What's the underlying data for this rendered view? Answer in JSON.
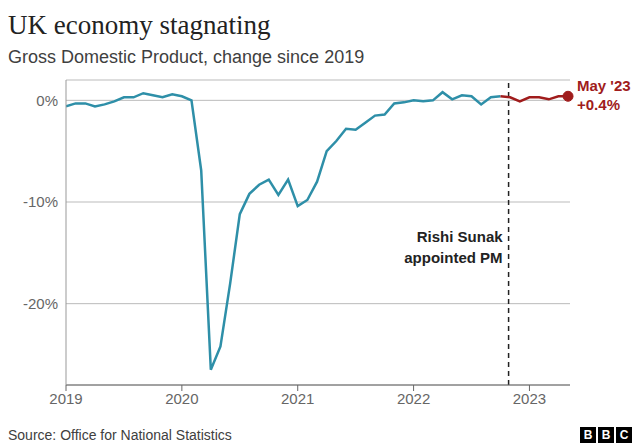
{
  "chart_data": {
    "type": "line",
    "title": "UK economy stagnating",
    "subtitle": "Gross Domestic Product, change since 2019",
    "source": "Source: Office for National Statistics",
    "logo": "BBC",
    "x": [
      2019,
      2019.083,
      2019.167,
      2019.25,
      2019.333,
      2019.417,
      2019.5,
      2019.583,
      2019.667,
      2019.75,
      2019.833,
      2019.917,
      2020,
      2020.083,
      2020.167,
      2020.25,
      2020.333,
      2020.417,
      2020.5,
      2020.583,
      2020.667,
      2020.75,
      2020.833,
      2020.917,
      2021,
      2021.083,
      2021.167,
      2021.25,
      2021.333,
      2021.417,
      2021.5,
      2021.583,
      2021.667,
      2021.75,
      2021.833,
      2021.917,
      2022,
      2022.083,
      2022.167,
      2022.25,
      2022.333,
      2022.417,
      2022.5,
      2022.583,
      2022.667,
      2022.75,
      2022.833,
      2022.917,
      2023,
      2023.083,
      2023.167,
      2023.25,
      2023.333
    ],
    "series": [
      {
        "color": "#2e8fa8",
        "values": [
          -0.6,
          -0.3,
          -0.3,
          -0.6,
          -0.4,
          -0.1,
          0.3,
          0.3,
          0.7,
          0.5,
          0.3,
          0.6,
          0.4,
          0.0,
          -6.9,
          -26.5,
          -24.2,
          -18.0,
          -11.2,
          -9.2,
          -8.3,
          -7.8,
          -9.3,
          -7.8,
          -10.4,
          -9.8,
          -8.0,
          -5.0,
          -4.0,
          -2.8,
          -2.9,
          -2.2,
          -1.5,
          -1.4,
          -0.3,
          -0.2,
          0.0,
          -0.1,
          0.0,
          0.8,
          0.1,
          0.5,
          0.4,
          -0.4,
          0.3,
          0.4,
          null,
          null,
          null,
          null,
          null,
          null,
          null
        ]
      },
      {
        "color": "#a01c1c",
        "values": [
          null,
          null,
          null,
          null,
          null,
          null,
          null,
          null,
          null,
          null,
          null,
          null,
          null,
          null,
          null,
          null,
          null,
          null,
          null,
          null,
          null,
          null,
          null,
          null,
          null,
          null,
          null,
          null,
          null,
          null,
          null,
          null,
          null,
          null,
          null,
          null,
          null,
          null,
          null,
          null,
          null,
          null,
          null,
          null,
          null,
          0.4,
          0.3,
          -0.1,
          0.3,
          0.3,
          0.1,
          0.4,
          0.4
        ]
      }
    ],
    "xlim": [
      2019,
      2023.35
    ],
    "xticks": [
      2019,
      2020,
      2021,
      2022,
      2023
    ],
    "ylim": [
      -28,
      2
    ],
    "yticks": [
      {
        "value": 0,
        "label": "0%"
      },
      {
        "value": -10,
        "label": "-10%"
      },
      {
        "value": -20,
        "label": "-20%"
      }
    ],
    "grid": true,
    "annotations": [
      {
        "text": [
          "Rishi Sunak",
          "appointed PM"
        ],
        "x": 2022.82
      },
      {
        "label": "May '23",
        "value_label": "+0.4%"
      }
    ]
  }
}
